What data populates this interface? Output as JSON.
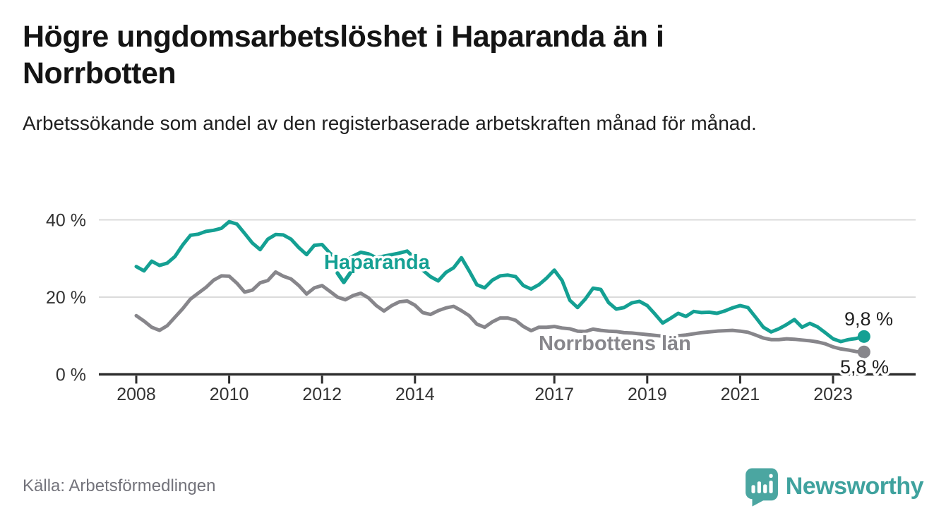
{
  "header": {
    "title": "Högre ungdomsarbetslöshet i Haparanda än i Norrbotten",
    "subtitle": "Arbetssökande som andel av den registerbaserade arbetskraften månad för månad."
  },
  "footer": {
    "source": "Källa: Arbetsförmedlingen",
    "brand": "Newsworthy"
  },
  "colors": {
    "haparanda": "#14a093",
    "norrbotten": "#87868b",
    "grid": "#dbdbdb",
    "axis": "#2e2e2e",
    "tick_text": "#333333",
    "value_label": "#1f1f1f",
    "brand_teal": "#3fa29e",
    "icon_teal": "#4ba6a1"
  },
  "chart_data": {
    "type": "line",
    "title": "Högre ungdomsarbetslöshet i Haparanda än i Norrbotten",
    "subtitle": "Arbetssökande som andel av den registerbaserade arbetskraften månad för månad.",
    "unit": "%",
    "x_start_year": 2008,
    "x_step_months": 2,
    "x_end_approx": "2023 (sep)",
    "ylim": [
      0,
      42
    ],
    "grid": "horizontal",
    "yticks": [
      [
        0,
        "0 %"
      ],
      [
        20,
        "20 %"
      ],
      [
        40,
        "40 %"
      ]
    ],
    "xticks": [
      2008,
      2010,
      2012,
      2014,
      2017,
      2019,
      2021,
      2023
    ],
    "legend_position": "inline-labels",
    "series": [
      {
        "name": "Haparanda",
        "color": "#14a093",
        "end_label": "9,8 %",
        "pointer": "down-arrow",
        "values": [
          27.9,
          26.8,
          29.3,
          28.2,
          28.8,
          30.5,
          33.5,
          36.0,
          36.3,
          37.0,
          37.3,
          37.8,
          39.5,
          38.9,
          36.5,
          34.0,
          32.3,
          35.0,
          36.2,
          36.1,
          35.0,
          32.8,
          31.0,
          33.4,
          33.6,
          31.4,
          29.9,
          29.3,
          30.6,
          31.6,
          31.2,
          30.2,
          30.6,
          31.0,
          31.4,
          31.9,
          30.0,
          27.0,
          25.3,
          24.2,
          26.4,
          27.6,
          30.2,
          26.8,
          23.2,
          22.4,
          24.4,
          25.5,
          25.7,
          25.3,
          23.0,
          22.1,
          23.2,
          24.9,
          27.0,
          24.3,
          19.2,
          17.3,
          19.5,
          22.3,
          22.0,
          18.6,
          16.9,
          17.3,
          18.5,
          18.9,
          17.8,
          15.6,
          13.3,
          14.5,
          15.8,
          15.0,
          16.3,
          16.0,
          16.1,
          15.8,
          16.4,
          17.2,
          17.8,
          17.3,
          14.8,
          12.2,
          11.0,
          11.8,
          12.9,
          14.2,
          12.2,
          13.2,
          12.3,
          10.8,
          9.2,
          8.5,
          9.0,
          9.3,
          9.8
        ]
      },
      {
        "name": "Norrbottens län",
        "color": "#87868b",
        "end_label": "5,8 %",
        "pointer": "none",
        "values": [
          15.2,
          13.8,
          12.2,
          11.4,
          12.6,
          14.8,
          17.0,
          19.5,
          21.0,
          22.5,
          24.4,
          25.5,
          25.4,
          23.6,
          21.3,
          21.8,
          23.7,
          24.3,
          26.5,
          25.4,
          24.7,
          23.0,
          20.8,
          22.4,
          23.0,
          21.5,
          20.0,
          19.3,
          20.4,
          21.0,
          19.8,
          17.8,
          16.4,
          17.8,
          18.8,
          19.0,
          17.9,
          16.0,
          15.5,
          16.5,
          17.2,
          17.6,
          16.5,
          15.2,
          13.0,
          12.2,
          13.6,
          14.6,
          14.6,
          14.0,
          12.4,
          11.3,
          12.2,
          12.2,
          12.4,
          12.0,
          11.8,
          11.2,
          11.1,
          11.7,
          11.4,
          11.2,
          11.1,
          10.8,
          10.7,
          10.5,
          10.3,
          10.1,
          9.9,
          9.8,
          10.0,
          10.2,
          10.5,
          10.8,
          11.0,
          11.2,
          11.3,
          11.4,
          11.2,
          10.9,
          10.2,
          9.4,
          9.0,
          9.0,
          9.2,
          9.1,
          8.9,
          8.7,
          8.4,
          7.9,
          7.1,
          6.6,
          6.3,
          5.9,
          5.8
        ]
      }
    ]
  }
}
